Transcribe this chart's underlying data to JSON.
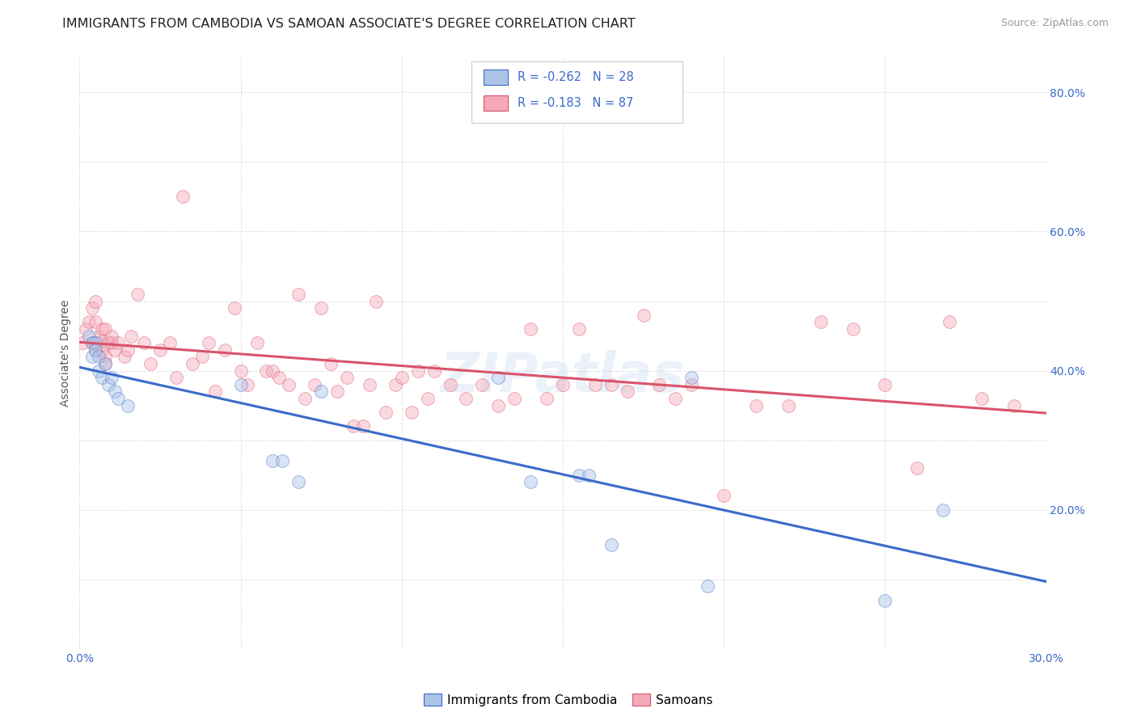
{
  "title": "IMMIGRANTS FROM CAMBODIA VS SAMOAN ASSOCIATE'S DEGREE CORRELATION CHART",
  "source": "Source: ZipAtlas.com",
  "ylabel": "Associate's Degree",
  "watermark": "ZIPatlas",
  "xlim": [
    0.0,
    0.3
  ],
  "ylim": [
    0.0,
    0.85
  ],
  "xtick_positions": [
    0.0,
    0.05,
    0.1,
    0.15,
    0.2,
    0.25,
    0.3
  ],
  "xtick_labels": [
    "0.0%",
    "",
    "",
    "",
    "",
    "",
    "30.0%"
  ],
  "ytick_positions": [
    0.0,
    0.1,
    0.2,
    0.3,
    0.4,
    0.5,
    0.6,
    0.7,
    0.8
  ],
  "ytick_labels_left": [
    "",
    "",
    "",
    "",
    "",
    "",
    "",
    "",
    ""
  ],
  "ytick_labels_right": [
    "",
    "",
    "20.0%",
    "",
    "40.0%",
    "",
    "60.0%",
    "",
    "80.0%"
  ],
  "legend_label1": "Immigrants from Cambodia",
  "legend_label2": "Samoans",
  "R1": "-0.262",
  "N1": "28",
  "R2": "-0.183",
  "N2": "87",
  "color1": "#aac4e8",
  "color2": "#f4aab8",
  "line_color1": "#3a6bc9",
  "line_color2": "#d9546a",
  "scatter1_x": [
    0.003,
    0.004,
    0.004,
    0.005,
    0.005,
    0.006,
    0.006,
    0.007,
    0.008,
    0.009,
    0.01,
    0.011,
    0.012,
    0.015,
    0.05,
    0.06,
    0.063,
    0.068,
    0.075,
    0.13,
    0.14,
    0.155,
    0.158,
    0.165,
    0.19,
    0.195,
    0.25,
    0.268
  ],
  "scatter1_y": [
    0.45,
    0.44,
    0.42,
    0.44,
    0.43,
    0.42,
    0.4,
    0.39,
    0.41,
    0.38,
    0.39,
    0.37,
    0.36,
    0.35,
    0.38,
    0.27,
    0.27,
    0.24,
    0.37,
    0.39,
    0.24,
    0.25,
    0.25,
    0.15,
    0.39,
    0.09,
    0.07,
    0.2
  ],
  "scatter2_x": [
    0.001,
    0.002,
    0.003,
    0.004,
    0.004,
    0.005,
    0.005,
    0.005,
    0.006,
    0.006,
    0.007,
    0.007,
    0.008,
    0.008,
    0.008,
    0.009,
    0.01,
    0.01,
    0.011,
    0.012,
    0.014,
    0.015,
    0.016,
    0.018,
    0.02,
    0.022,
    0.025,
    0.028,
    0.03,
    0.032,
    0.035,
    0.038,
    0.04,
    0.042,
    0.045,
    0.048,
    0.05,
    0.052,
    0.055,
    0.058,
    0.06,
    0.062,
    0.065,
    0.068,
    0.07,
    0.073,
    0.075,
    0.078,
    0.08,
    0.083,
    0.085,
    0.088,
    0.09,
    0.092,
    0.095,
    0.098,
    0.1,
    0.103,
    0.105,
    0.108,
    0.11,
    0.115,
    0.12,
    0.125,
    0.13,
    0.135,
    0.14,
    0.145,
    0.15,
    0.155,
    0.16,
    0.165,
    0.17,
    0.175,
    0.18,
    0.185,
    0.19,
    0.2,
    0.21,
    0.22,
    0.23,
    0.24,
    0.25,
    0.26,
    0.27,
    0.28,
    0.29
  ],
  "scatter2_y": [
    0.44,
    0.46,
    0.47,
    0.49,
    0.44,
    0.5,
    0.47,
    0.43,
    0.45,
    0.44,
    0.46,
    0.43,
    0.42,
    0.41,
    0.46,
    0.44,
    0.44,
    0.45,
    0.43,
    0.44,
    0.42,
    0.43,
    0.45,
    0.51,
    0.44,
    0.41,
    0.43,
    0.44,
    0.39,
    0.65,
    0.41,
    0.42,
    0.44,
    0.37,
    0.43,
    0.49,
    0.4,
    0.38,
    0.44,
    0.4,
    0.4,
    0.39,
    0.38,
    0.51,
    0.36,
    0.38,
    0.49,
    0.41,
    0.37,
    0.39,
    0.32,
    0.32,
    0.38,
    0.5,
    0.34,
    0.38,
    0.39,
    0.34,
    0.4,
    0.36,
    0.4,
    0.38,
    0.36,
    0.38,
    0.35,
    0.36,
    0.46,
    0.36,
    0.38,
    0.46,
    0.38,
    0.38,
    0.37,
    0.48,
    0.38,
    0.36,
    0.38,
    0.22,
    0.35,
    0.35,
    0.47,
    0.46,
    0.38,
    0.26,
    0.47,
    0.36,
    0.35
  ],
  "background_color": "#ffffff",
  "grid_color": "#dddddd",
  "title_fontsize": 11.5,
  "axis_label_fontsize": 10,
  "tick_fontsize": 10,
  "source_fontsize": 9,
  "watermark_fontsize": 48,
  "watermark_color": "#c8d8ee",
  "watermark_alpha": 0.35,
  "marker_size": 130,
  "marker_alpha": 0.45,
  "line_width": 2.2
}
